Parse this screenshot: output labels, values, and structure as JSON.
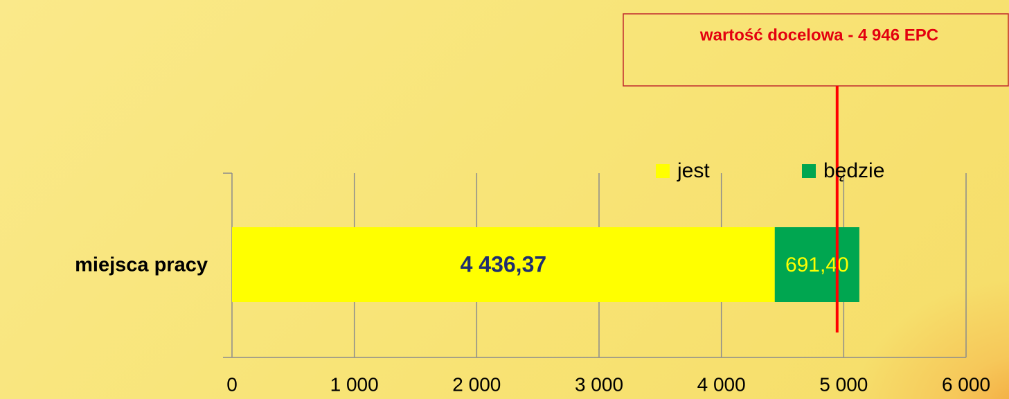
{
  "chart_data": {
    "type": "stacked-bar-horizontal",
    "categories": [
      "miejsca pracy"
    ],
    "series": [
      {
        "name": "jest",
        "color": "#ffff00",
        "values": [
          4436.37
        ],
        "value_labels": [
          "4 436,37"
        ]
      },
      {
        "name": "będzie",
        "color": "#00a650",
        "values": [
          691.4
        ],
        "value_labels": [
          "691,40"
        ]
      }
    ],
    "xlim": [
      0,
      6000
    ],
    "xticks": [
      0,
      {
        "value": 1000,
        "label": "1 000"
      },
      {
        "value": 2000,
        "label": "2 000"
      },
      {
        "value": 3000,
        "label": "3 000"
      },
      {
        "value": 4000,
        "label": "4 000"
      },
      {
        "value": 5000,
        "label": "5 000"
      },
      {
        "value": 6000,
        "label": "6 000"
      }
    ],
    "grid": true,
    "legend": "top-right",
    "target": {
      "value": 4946,
      "color": "#ff0000",
      "annotation": "wartość docelowa - 4 946 EPC"
    }
  }
}
